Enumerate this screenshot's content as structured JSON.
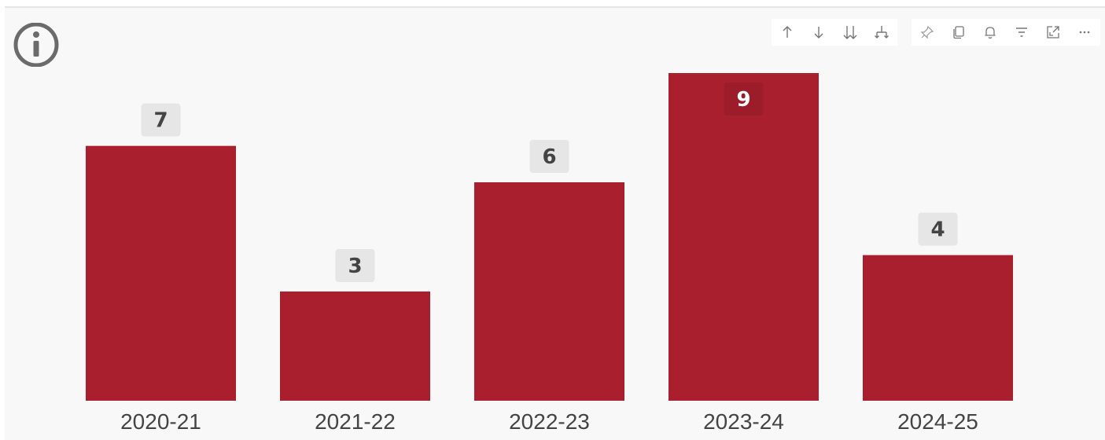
{
  "toolbar": {
    "buttons": [
      {
        "name": "drill-up-icon",
        "label": "Drill up"
      },
      {
        "name": "drill-down-icon",
        "label": "Drill down"
      },
      {
        "name": "expand-all-icon",
        "label": "Go to next level"
      },
      {
        "name": "expand-hierarchy-icon",
        "label": "Expand all down one level"
      },
      {
        "name": "pin-icon",
        "label": "Pin visual"
      },
      {
        "name": "copy-icon",
        "label": "Copy visual"
      },
      {
        "name": "bell-icon",
        "label": "Set alert"
      },
      {
        "name": "filter-icon",
        "label": "Filters"
      },
      {
        "name": "focus-mode-icon",
        "label": "Focus mode"
      },
      {
        "name": "more-options-icon",
        "label": "More options"
      }
    ]
  },
  "colors": {
    "bar": "#aa1f2e",
    "label_box": "#e6e6e6",
    "label_box_inside": "#9c1c29",
    "text": "#444444"
  },
  "chart_data": {
    "type": "bar",
    "categories": [
      "2020-21",
      "2021-22",
      "2022-23",
      "2023-24",
      "2024-25"
    ],
    "values": [
      7,
      3,
      6,
      9,
      4
    ],
    "data_labels": [
      "7",
      "3",
      "6",
      "9",
      "4"
    ],
    "title": "",
    "xlabel": "",
    "ylabel": "",
    "ylim": [
      0,
      9
    ],
    "grid": false,
    "legend": "none"
  }
}
